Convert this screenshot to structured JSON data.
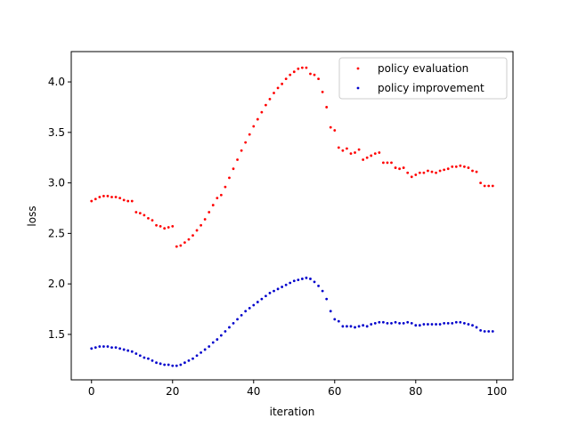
{
  "chart_data": {
    "type": "scatter",
    "title": "",
    "xlabel": "iteration",
    "ylabel": "loss",
    "xlim": [
      -5,
      104
    ],
    "ylim": [
      1.05,
      4.3
    ],
    "xticks": [
      0,
      20,
      40,
      60,
      80,
      100
    ],
    "yticks": [
      1.5,
      2.0,
      2.5,
      3.0,
      3.5,
      4.0
    ],
    "xtick_labels": [
      "0",
      "20",
      "40",
      "60",
      "80",
      "100"
    ],
    "ytick_labels": [
      "1.5",
      "2.0",
      "2.5",
      "3.0",
      "3.5",
      "4.0"
    ],
    "grid": false,
    "legend_position": "top-right",
    "x": [
      0,
      1,
      2,
      3,
      4,
      5,
      6,
      7,
      8,
      9,
      10,
      11,
      12,
      13,
      14,
      15,
      16,
      17,
      18,
      19,
      20,
      21,
      22,
      23,
      24,
      25,
      26,
      27,
      28,
      29,
      30,
      31,
      32,
      33,
      34,
      35,
      36,
      37,
      38,
      39,
      40,
      41,
      42,
      43,
      44,
      45,
      46,
      47,
      48,
      49,
      50,
      51,
      52,
      53,
      54,
      55,
      56,
      57,
      58,
      59,
      60,
      61,
      62,
      63,
      64,
      65,
      66,
      67,
      68,
      69,
      70,
      71,
      72,
      73,
      74,
      75,
      76,
      77,
      78,
      79,
      80,
      81,
      82,
      83,
      84,
      85,
      86,
      87,
      88,
      89,
      90,
      91,
      92,
      93,
      94,
      95,
      96,
      97,
      98,
      99
    ],
    "series": [
      {
        "name": "policy evaluation",
        "color": "#ff0000",
        "values": [
          2.82,
          2.84,
          2.86,
          2.87,
          2.87,
          2.86,
          2.86,
          2.85,
          2.83,
          2.82,
          2.82,
          2.71,
          2.7,
          2.68,
          2.65,
          2.63,
          2.58,
          2.57,
          2.55,
          2.56,
          2.57,
          2.37,
          2.38,
          2.41,
          2.44,
          2.48,
          2.53,
          2.58,
          2.64,
          2.71,
          2.78,
          2.85,
          2.88,
          2.96,
          3.05,
          3.14,
          3.23,
          3.32,
          3.4,
          3.48,
          3.56,
          3.63,
          3.7,
          3.77,
          3.83,
          3.89,
          3.94,
          3.98,
          4.03,
          4.07,
          4.1,
          4.13,
          4.14,
          4.14,
          4.08,
          4.07,
          4.03,
          3.9,
          3.75,
          3.55,
          3.52,
          3.35,
          3.32,
          3.34,
          3.29,
          3.3,
          3.33,
          3.23,
          3.25,
          3.27,
          3.29,
          3.3,
          3.2,
          3.2,
          3.2,
          3.15,
          3.14,
          3.15,
          3.1,
          3.06,
          3.08,
          3.1,
          3.1,
          3.12,
          3.11,
          3.1,
          3.12,
          3.13,
          3.14,
          3.16,
          3.16,
          3.17,
          3.16,
          3.15,
          3.12,
          3.11,
          3.0,
          2.97,
          2.97,
          2.97
        ]
      },
      {
        "name": "policy improvement",
        "color": "#0000cc",
        "values": [
          1.36,
          1.37,
          1.38,
          1.38,
          1.38,
          1.37,
          1.37,
          1.36,
          1.35,
          1.34,
          1.33,
          1.31,
          1.29,
          1.27,
          1.26,
          1.24,
          1.22,
          1.21,
          1.2,
          1.2,
          1.19,
          1.19,
          1.2,
          1.22,
          1.24,
          1.26,
          1.29,
          1.32,
          1.35,
          1.38,
          1.42,
          1.45,
          1.49,
          1.53,
          1.57,
          1.61,
          1.65,
          1.69,
          1.73,
          1.76,
          1.79,
          1.82,
          1.85,
          1.88,
          1.91,
          1.93,
          1.95,
          1.97,
          1.99,
          2.01,
          2.03,
          2.04,
          2.05,
          2.06,
          2.05,
          2.02,
          1.98,
          1.93,
          1.85,
          1.73,
          1.65,
          1.63,
          1.58,
          1.58,
          1.58,
          1.57,
          1.58,
          1.59,
          1.58,
          1.6,
          1.61,
          1.62,
          1.62,
          1.61,
          1.61,
          1.62,
          1.61,
          1.61,
          1.62,
          1.61,
          1.59,
          1.59,
          1.6,
          1.6,
          1.6,
          1.6,
          1.6,
          1.61,
          1.61,
          1.61,
          1.62,
          1.62,
          1.61,
          1.6,
          1.59,
          1.57,
          1.54,
          1.53,
          1.53,
          1.53
        ]
      }
    ]
  }
}
